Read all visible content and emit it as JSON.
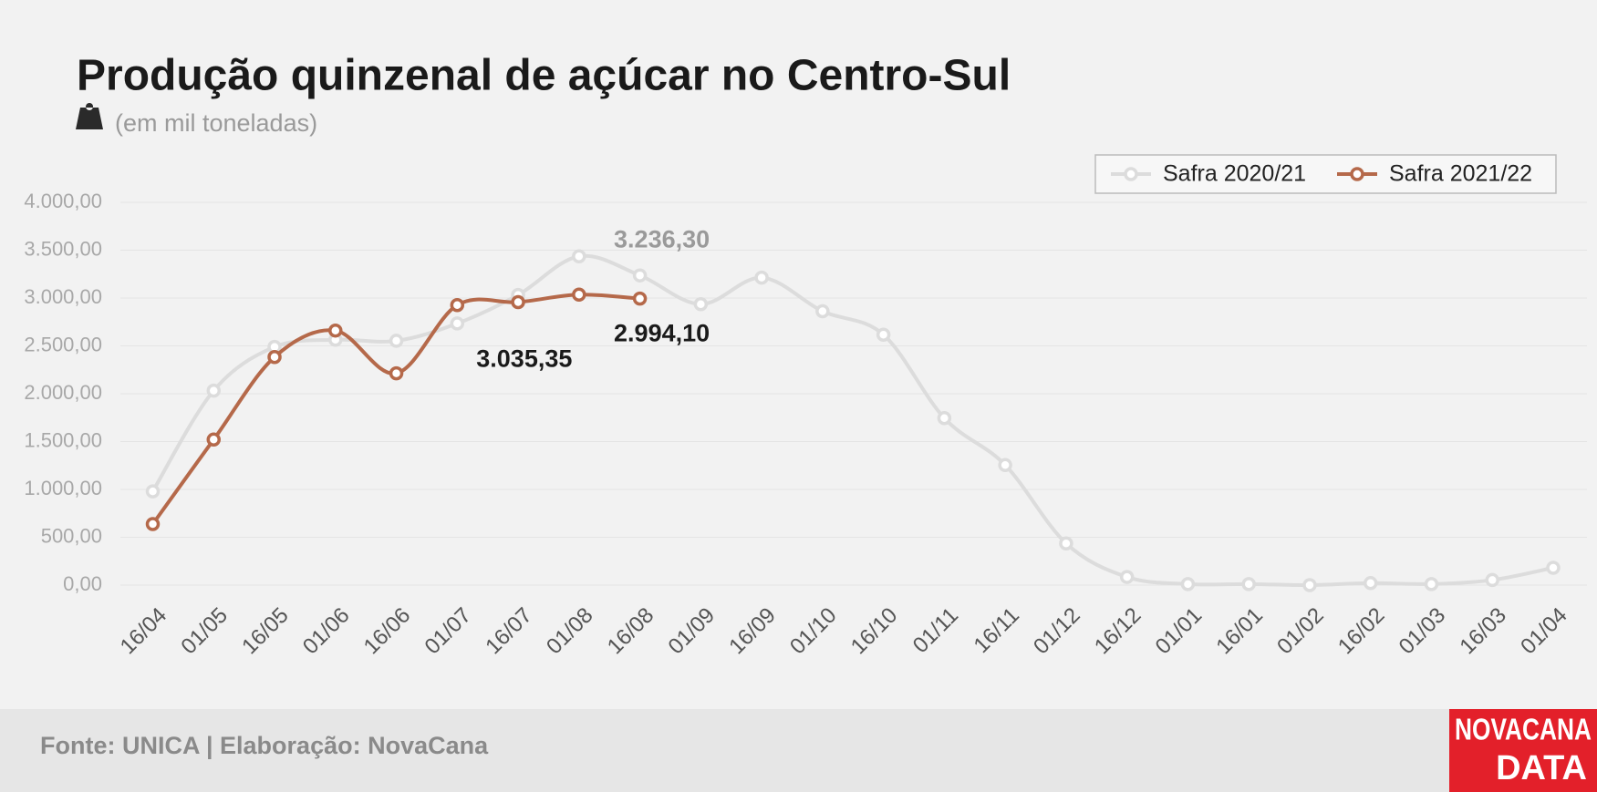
{
  "chart_data": {
    "type": "line",
    "title": "Produção quinzenal de açúcar no Centro-Sul",
    "subtitle": "(em mil toneladas)",
    "source": "Fonte: UNICA | Elaboração: NovaCana",
    "logo": [
      "NOVACANA",
      "DATA"
    ],
    "categories": [
      "16/04",
      "01/05",
      "16/05",
      "01/06",
      "16/06",
      "01/07",
      "16/07",
      "01/08",
      "16/08",
      "01/09",
      "16/09",
      "01/10",
      "16/10",
      "01/11",
      "16/11",
      "01/12",
      "16/12",
      "01/01",
      "16/01",
      "01/02",
      "16/02",
      "01/03",
      "16/03",
      "01/04"
    ],
    "series": [
      {
        "name": "Safra 2020/21",
        "color": "#dcdcdc",
        "label_color": "#9a9a9a",
        "values": [
          980,
          2032,
          2489,
          2564,
          2553,
          2734,
          3032,
          3436,
          3236.3,
          2936,
          3213,
          2862,
          2617,
          1745,
          1255,
          436,
          85,
          11,
          11,
          0,
          21,
          11,
          53,
          181
        ],
        "value_labels": [
          null,
          null,
          null,
          null,
          null,
          null,
          null,
          null,
          "3.236,30",
          null,
          null,
          null,
          null,
          null,
          null,
          null,
          null,
          null,
          null,
          null,
          null,
          null,
          null,
          null
        ]
      },
      {
        "name": "Safra 2021/22",
        "color": "#b5694a",
        "label_color": "#1a1a1a",
        "values": [
          638,
          1521,
          2383,
          2660,
          2213,
          2926,
          2957,
          3035.35,
          2994.1,
          null,
          null,
          null,
          null,
          null,
          null,
          null,
          null,
          null,
          null,
          null,
          null,
          null,
          null,
          null
        ],
        "value_labels": [
          null,
          null,
          null,
          null,
          null,
          null,
          null,
          "3.035,35",
          "2.994,10",
          null,
          null,
          null,
          null,
          null,
          null,
          null,
          null,
          null,
          null,
          null,
          null,
          null,
          null,
          null
        ]
      }
    ],
    "ylim": [
      0,
      4000
    ],
    "yticks": [
      {
        "value": 0,
        "label": "0,00"
      },
      {
        "value": 500,
        "label": "500,00"
      },
      {
        "value": 1000,
        "label": "1.000,00"
      },
      {
        "value": 1500,
        "label": "1.500,00"
      },
      {
        "value": 2000,
        "label": "2.000,00"
      },
      {
        "value": 2500,
        "label": "2.500,00"
      },
      {
        "value": 3000,
        "label": "3.000,00"
      },
      {
        "value": 3500,
        "label": "3.500,00"
      },
      {
        "value": 4000,
        "label": "4.000,00"
      }
    ],
    "grid": true,
    "legend": "top-right"
  }
}
